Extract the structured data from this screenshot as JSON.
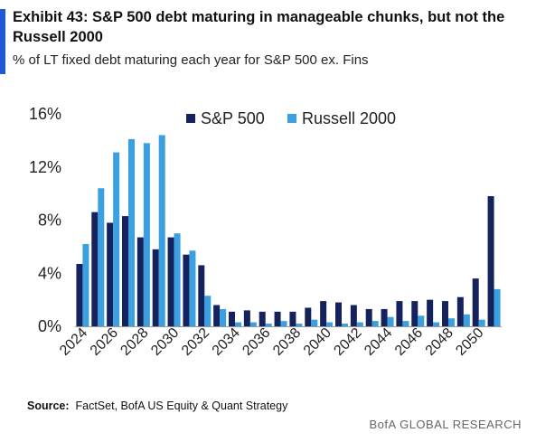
{
  "header": {
    "title": "Exhibit 43: S&P 500 debt maturing in manageable chunks, but not the Russell 2000",
    "subtitle": "% of LT fixed debt maturing each year for S&P 500 ex. Fins"
  },
  "footer": {
    "source_label": "Source:",
    "source_text": "FactSet, BofA US Equity & Quant Strategy",
    "brand": "BofA GLOBAL RESEARCH"
  },
  "colors": {
    "sp500": "#14225e",
    "russell": "#3aa0e0",
    "accent": "#1f5ad6"
  },
  "chart_data": {
    "type": "bar",
    "title": "Exhibit 43: S&P 500 debt maturing in manageable chunks, but not the Russell 2000",
    "subtitle": "% of LT fixed debt maturing each year for S&P 500 ex. Fins",
    "xlabel": "",
    "ylabel": "",
    "ylim": [
      0,
      16
    ],
    "yticks": [
      0,
      4,
      8,
      12,
      16
    ],
    "ytick_labels": [
      "0%",
      "4%",
      "8%",
      "12%",
      "16%"
    ],
    "grid": false,
    "legend_position": "top",
    "categories": [
      2024,
      2025,
      2026,
      2027,
      2028,
      2029,
      2030,
      2031,
      2032,
      2033,
      2034,
      2035,
      2036,
      2037,
      2038,
      2039,
      2040,
      2041,
      2042,
      2043,
      2044,
      2045,
      2046,
      2047,
      2048,
      2049,
      2050,
      2051
    ],
    "xtick_labels": [
      "2024",
      "2026",
      "2028",
      "2030",
      "2032",
      "2034",
      "2036",
      "2038",
      "2040",
      "2042",
      "2044",
      "2046",
      "2048",
      "2050"
    ],
    "series": [
      {
        "name": "S&P 500",
        "values": [
          4.7,
          8.6,
          7.8,
          8.3,
          6.7,
          5.8,
          6.7,
          5.4,
          4.6,
          1.6,
          1.1,
          1.2,
          1.1,
          1.1,
          1.1,
          1.4,
          1.9,
          1.8,
          1.6,
          1.3,
          1.3,
          1.9,
          1.9,
          2.0,
          1.9,
          2.2,
          3.6,
          9.8
        ]
      },
      {
        "name": "Russell 2000",
        "values": [
          6.2,
          10.4,
          13.1,
          14.1,
          13.8,
          14.4,
          7.0,
          5.7,
          2.3,
          1.3,
          0.3,
          0.3,
          0.2,
          0.4,
          0.2,
          0.5,
          0.3,
          0.2,
          0.3,
          0.4,
          0.7,
          0.4,
          0.8,
          0.3,
          0.6,
          0.9,
          0.5,
          2.8
        ]
      }
    ]
  }
}
